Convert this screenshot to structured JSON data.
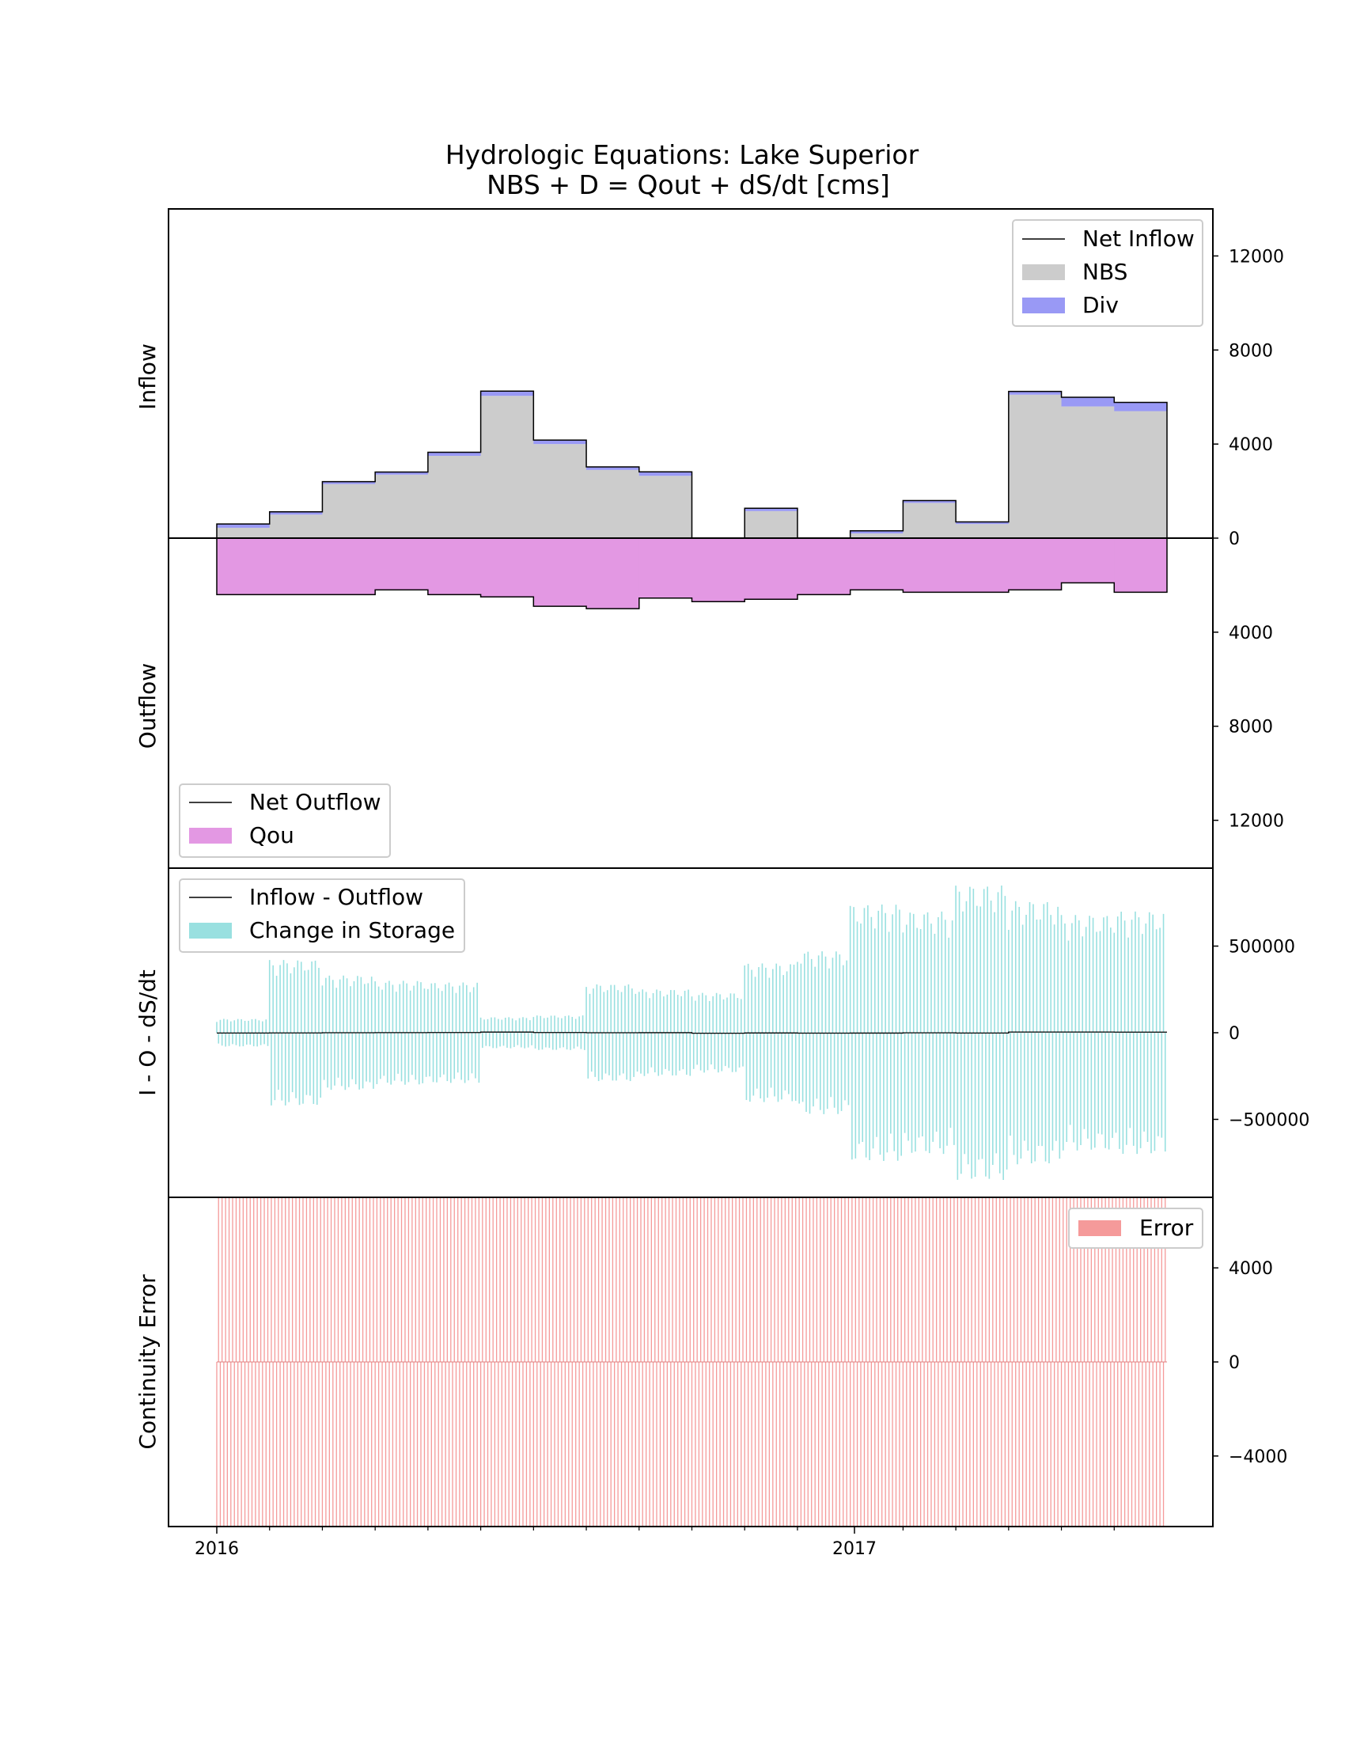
{
  "chart_data": [
    {
      "panel": "inflow",
      "type": "area",
      "title": "Hydrologic Equations: Lake Superior",
      "subtitle": "NBS + D = Qout + dS/dt [cms]",
      "ylabel": "Inflow",
      "ylim": [
        0,
        14000
      ],
      "yticks": [
        0,
        4000,
        8000,
        12000
      ],
      "ytick_labels": [
        "0",
        "4000",
        "8000",
        "12000"
      ],
      "legend_position": "upper right",
      "x": [
        "2016-01",
        "2016-02",
        "2016-03",
        "2016-04",
        "2016-05",
        "2016-06",
        "2016-07",
        "2016-08",
        "2016-09",
        "2016-10",
        "2016-11",
        "2016-12",
        "2017-01",
        "2017-02",
        "2017-03",
        "2017-04",
        "2017-05",
        "2017-06"
      ],
      "series": [
        {
          "name": "NBS",
          "color": "#cccccc",
          "values": [
            440,
            1000,
            2300,
            2700,
            3500,
            6050,
            4000,
            2900,
            2650,
            0,
            1150,
            0,
            200,
            1500,
            600,
            6100,
            5600,
            5400
          ]
        },
        {
          "name": "Div",
          "color": "#9999f5",
          "values": [
            160,
            120,
            100,
            110,
            150,
            200,
            170,
            130,
            170,
            0,
            120,
            0,
            110,
            100,
            90,
            140,
            390,
            370
          ]
        },
        {
          "name": "Net Inflow",
          "color": "#000000",
          "values": [
            600,
            1120,
            2400,
            2810,
            3650,
            6250,
            4170,
            3030,
            2820,
            0,
            1270,
            0,
            310,
            1600,
            690,
            6240,
            5990,
            5770
          ]
        }
      ]
    },
    {
      "panel": "outflow",
      "type": "area",
      "ylabel": "Outflow",
      "ylim": [
        0,
        14000
      ],
      "yticks": [
        4000,
        8000,
        12000
      ],
      "ytick_labels": [
        "4000",
        "8000",
        "12000"
      ],
      "legend_position": "lower left",
      "x": [
        "2016-01",
        "2016-02",
        "2016-03",
        "2016-04",
        "2016-05",
        "2016-06",
        "2016-07",
        "2016-08",
        "2016-09",
        "2016-10",
        "2016-11",
        "2016-12",
        "2017-01",
        "2017-02",
        "2017-03",
        "2017-04",
        "2017-05",
        "2017-06"
      ],
      "series": [
        {
          "name": "Qou",
          "color": "#e398e3",
          "values": [
            2400,
            2400,
            2400,
            2200,
            2400,
            2500,
            2900,
            3000,
            2550,
            2700,
            2600,
            2400,
            2200,
            2300,
            2300,
            2200,
            1900,
            2300
          ]
        },
        {
          "name": "Net Outflow",
          "color": "#000000",
          "values": [
            2400,
            2400,
            2400,
            2200,
            2400,
            2500,
            2900,
            3000,
            2550,
            2700,
            2600,
            2400,
            2200,
            2300,
            2300,
            2200,
            1900,
            2300
          ]
        }
      ]
    },
    {
      "panel": "storage",
      "type": "bar",
      "ylabel": "I - O - dS/dt",
      "ylim": [
        -950000,
        950000
      ],
      "yticks": [
        -500000,
        0,
        500000
      ],
      "ytick_labels": [
        "−500000",
        "0",
        "500000"
      ],
      "legend_position": "upper left",
      "x": [
        "2016-01",
        "2016-02",
        "2016-03",
        "2016-04",
        "2016-05",
        "2016-06",
        "2016-07",
        "2016-08",
        "2016-09",
        "2016-10",
        "2016-11",
        "2016-12",
        "2017-01",
        "2017-02",
        "2017-03",
        "2017-04",
        "2017-05",
        "2017-06"
      ],
      "series": [
        {
          "name": "Change in Storage",
          "color": "#99e0e0",
          "envelope": [
            80000,
            420000,
            330000,
            300000,
            290000,
            90000,
            100000,
            280000,
            250000,
            230000,
            400000,
            470000,
            740000,
            700000,
            850000,
            760000,
            680000,
            700000
          ]
        },
        {
          "name": "Inflow - Outflow",
          "color": "#000000",
          "values": [
            -1800,
            -1280,
            0,
            610,
            1250,
            3750,
            1270,
            30,
            270,
            -2700,
            -1330,
            -2400,
            -1890,
            -700,
            -1610,
            4040,
            4090,
            3470
          ]
        }
      ]
    },
    {
      "panel": "error",
      "type": "bar",
      "ylabel": "Continuity Error",
      "ylim": [
        -7000,
        7000
      ],
      "yticks": [
        -4000,
        0,
        4000
      ],
      "ytick_labels": [
        "−4000",
        "0",
        "4000"
      ],
      "legend_position": "upper right",
      "series": [
        {
          "name": "Error",
          "color": "#f59a9a",
          "high": 7000,
          "low": -7000
        }
      ]
    }
  ],
  "x_axis": {
    "tick_labels": [
      "2016",
      "2017"
    ]
  }
}
